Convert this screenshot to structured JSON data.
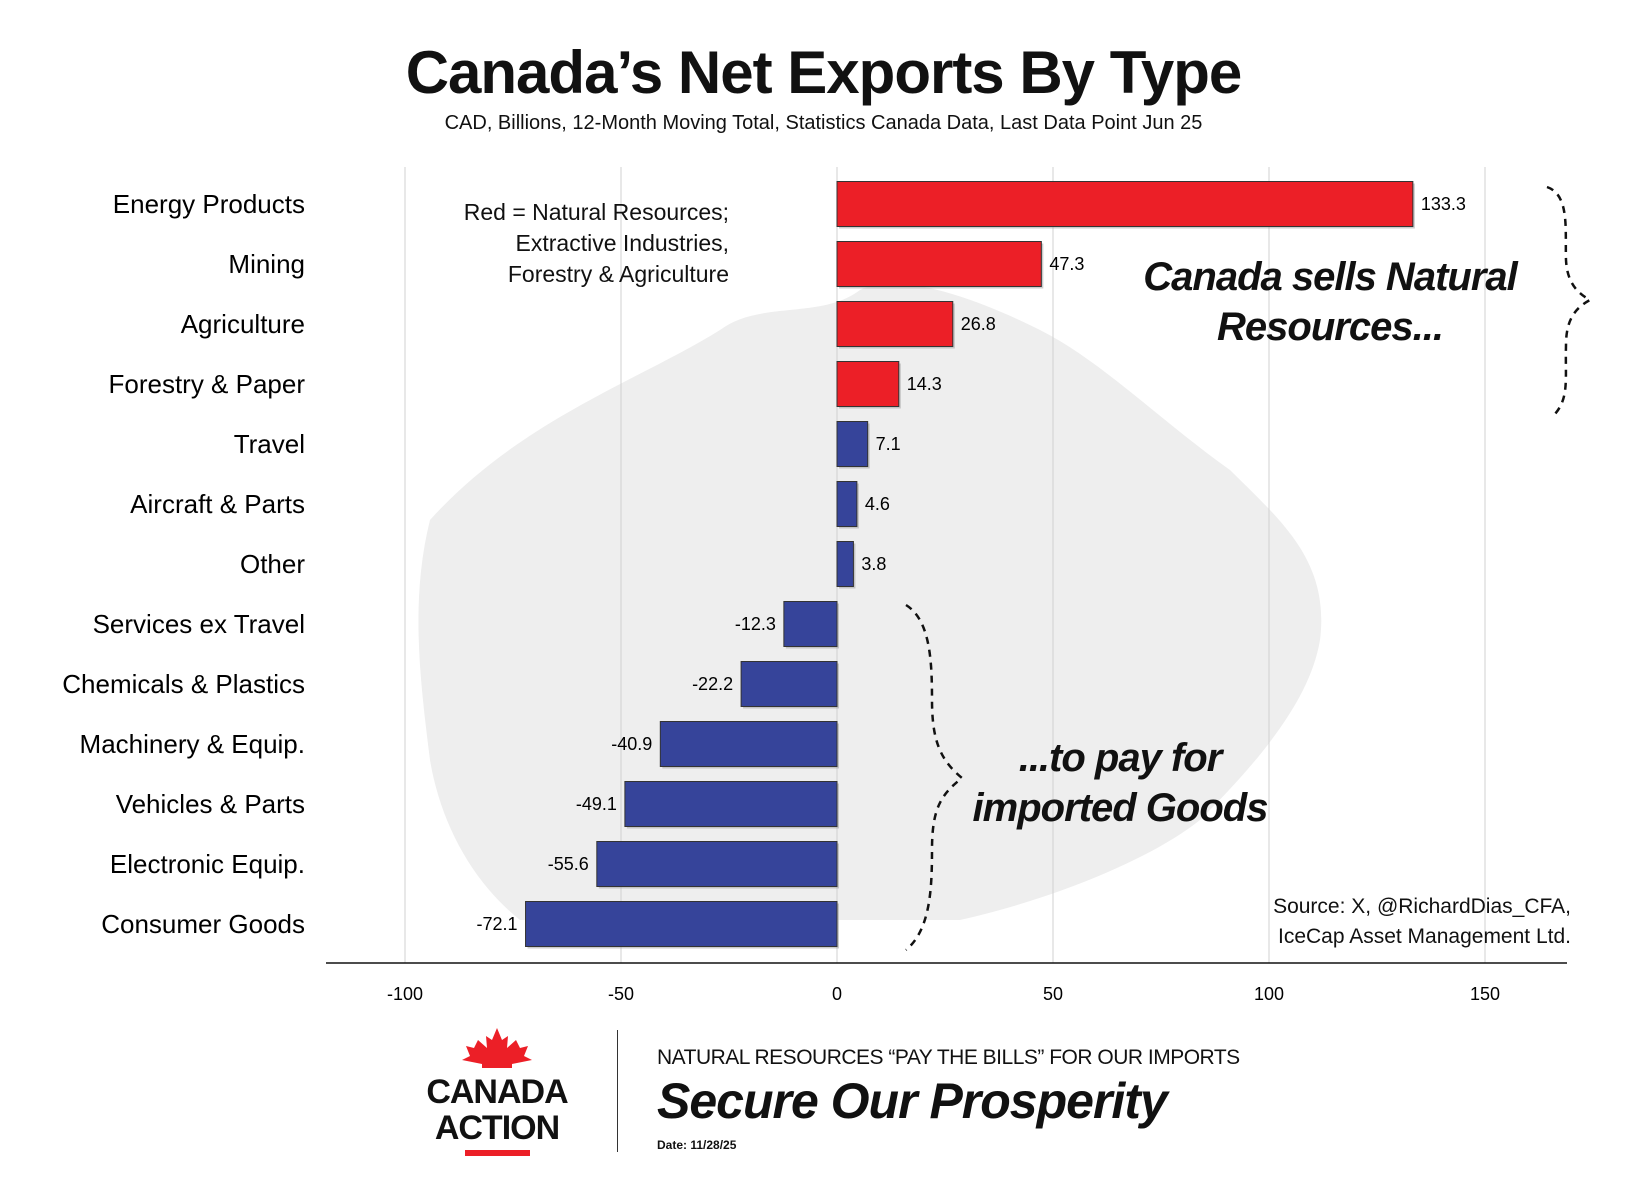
{
  "title": "Canada’s Net Exports By Type",
  "subtitle": "CAD, Billions, 12-Month Moving Total, Statistics Canada Data, Last Data Point Jun 25",
  "legend_note": [
    "Red = Natural Resources;",
    "Extractive Industries,",
    "Forestry & Agriculture"
  ],
  "annotation_top": [
    "Canada sells Natural",
    "Resources..."
  ],
  "annotation_bottom": [
    "...to pay for",
    "imported Goods"
  ],
  "source": [
    "Source: X, @RichardDias_CFA,",
    "IceCap Asset Management Ltd."
  ],
  "footer": {
    "logo_lines": [
      "CANADA",
      "ACTION"
    ],
    "tagline": "NATURAL RESOURCES “PAY THE BILLS” FOR OUR IMPORTS",
    "slogan": "Secure Our Prosperity",
    "date": "Date: 11/28/25"
  },
  "colors": {
    "natural_resources": "#ec1f27",
    "other": "#36449a"
  },
  "chart_data": {
    "type": "bar",
    "orientation": "horizontal",
    "categories": [
      "Energy Products",
      "Mining",
      "Agriculture",
      "Forestry & Paper",
      "Travel",
      "Aircraft & Parts",
      "Other",
      "Services ex Travel",
      "Chemicals & Plastics",
      "Machinery & Equip.",
      "Vehicles & Parts",
      "Electronic Equip.",
      "Consumer Goods"
    ],
    "values": [
      133.3,
      47.3,
      26.8,
      14.3,
      7.1,
      4.6,
      3.8,
      -12.3,
      -22.2,
      -40.9,
      -49.1,
      -55.6,
      -72.1
    ],
    "value_labels": [
      "133.3",
      "47.3",
      "26.8",
      "14.3",
      "7.1",
      "4.6",
      "3.8",
      "-12.3",
      "-22.2",
      "-40.9",
      "-49.1",
      "-55.6",
      "-72.1"
    ],
    "natural_resource": [
      true,
      true,
      true,
      true,
      false,
      false,
      false,
      false,
      false,
      false,
      false,
      false,
      false
    ],
    "xlim": [
      -120,
      170
    ],
    "xticks": [
      -100,
      -50,
      0,
      50,
      100,
      150
    ],
    "xtick_labels": [
      "-100",
      "-50",
      "0",
      "50",
      "100",
      "150"
    ],
    "grid": true
  }
}
